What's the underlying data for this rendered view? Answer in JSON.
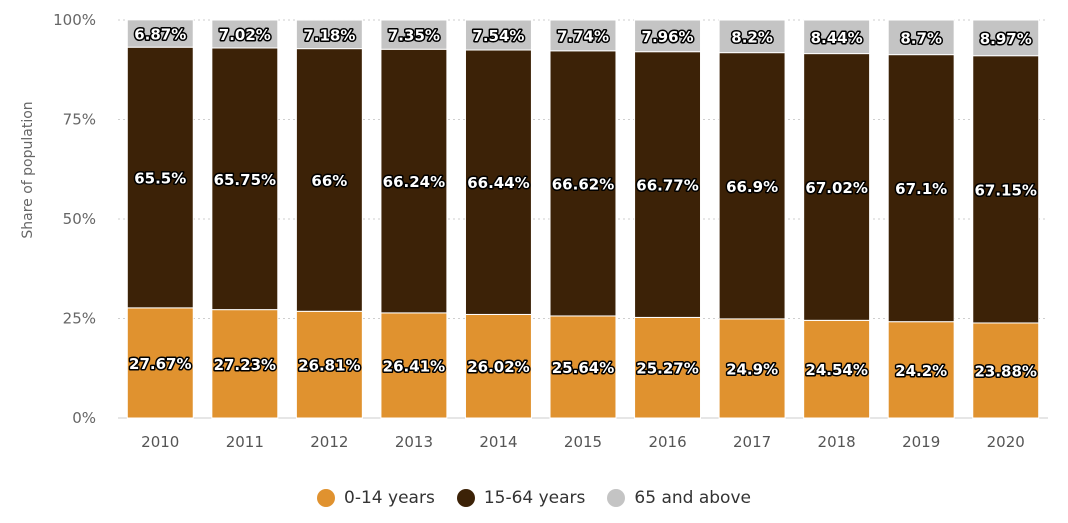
{
  "chart_data": {
    "type": "bar",
    "stacked": true,
    "ylabel": "Share of population",
    "xlabel": "",
    "ylim": [
      0,
      100
    ],
    "y_ticks": [
      "0%",
      "25%",
      "50%",
      "75%",
      "100%"
    ],
    "grid": true,
    "legend_position": "bottom",
    "categories": [
      "2010",
      "2011",
      "2012",
      "2013",
      "2014",
      "2015",
      "2016",
      "2017",
      "2018",
      "2019",
      "2020"
    ],
    "series": [
      {
        "name": "0-14 years",
        "color": "#e0922f",
        "values": [
          27.67,
          27.23,
          26.81,
          26.41,
          26.02,
          25.64,
          25.27,
          24.9,
          24.54,
          24.2,
          23.88
        ],
        "labels": [
          "27.67%",
          "27.23%",
          "26.81%",
          "26.41%",
          "26.02%",
          "25.64%",
          "25.27%",
          "24.9%",
          "24.54%",
          "24.2%",
          "23.88%"
        ]
      },
      {
        "name": "15-64 years",
        "color": "#3c2207",
        "values": [
          65.5,
          65.75,
          66,
          66.24,
          66.44,
          66.62,
          66.77,
          66.9,
          67.02,
          67.1,
          67.15
        ],
        "labels": [
          "65.5%",
          "65.75%",
          "66%",
          "66.24%",
          "66.44%",
          "66.62%",
          "66.77%",
          "66.9%",
          "67.02%",
          "67.1%",
          "67.15%"
        ]
      },
      {
        "name": "65 and above",
        "color": "#c4c4c4",
        "values": [
          6.87,
          7.02,
          7.18,
          7.35,
          7.54,
          7.74,
          7.96,
          8.2,
          8.44,
          8.7,
          8.97
        ],
        "labels": [
          "6.87%",
          "7.02%",
          "7.18%",
          "7.35%",
          "7.54%",
          "7.74%",
          "7.96%",
          "8.2%",
          "8.44%",
          "8.7%",
          "8.97%"
        ]
      }
    ]
  }
}
